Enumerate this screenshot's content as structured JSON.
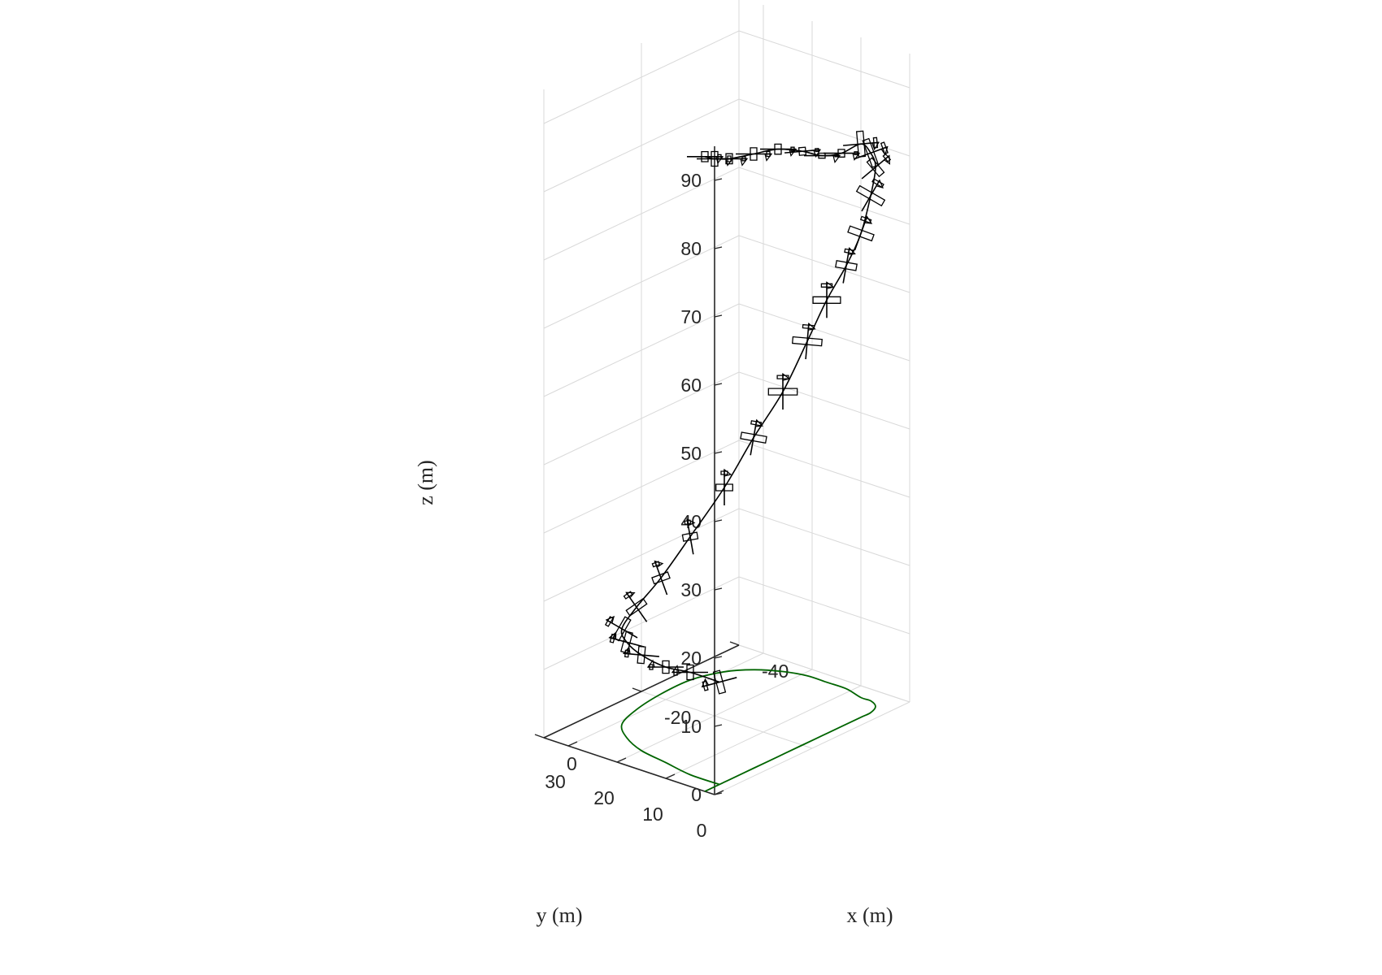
{
  "chart_data": {
    "type": "line",
    "projection": "3d",
    "title": "",
    "xlabel": "x (m)",
    "ylabel": "y (m)",
    "zlabel": "z (m)",
    "xlim": [
      -40,
      0
    ],
    "ylim": [
      0,
      35
    ],
    "zlim": [
      0,
      95
    ],
    "xticks": [
      "-40",
      "-20",
      "0"
    ],
    "yticks": [
      "0",
      "10",
      "20",
      "30"
    ],
    "zticks": [
      "0",
      "10",
      "20",
      "30",
      "40",
      "50",
      "60",
      "70",
      "80",
      "90"
    ],
    "grid": true,
    "colors": {
      "trajectory": "#000000",
      "ground_track": "#006400",
      "grid": "#d9d9d9",
      "axis": "#262626"
    },
    "series": [
      {
        "role": "trajectory",
        "x": [
          -3,
          -3,
          -4,
          -5,
          -7,
          -10,
          -15,
          -21,
          -27,
          -32,
          -35,
          -37,
          -38,
          -38,
          -38,
          -37,
          -37,
          -36,
          -34,
          -32,
          -28,
          -24,
          -20,
          -15,
          -10,
          -5,
          -2,
          0
        ],
        "y": [
          2,
          8,
          14,
          20,
          25,
          29,
          31,
          32,
          32,
          30,
          27,
          23,
          19,
          15,
          11,
          7,
          5,
          3,
          2,
          2,
          2,
          2,
          2,
          2,
          2,
          2,
          2,
          2
        ],
        "z": [
          15,
          15,
          14,
          14,
          14,
          14,
          15,
          17,
          21,
          27,
          34,
          41,
          49,
          56,
          62,
          68,
          74,
          79,
          82,
          84,
          84,
          85,
          87,
          89,
          90,
          91,
          92,
          93
        ]
      },
      {
        "role": "ground-track",
        "x": [
          -3,
          -3,
          -4,
          -5,
          -7,
          -10,
          -15,
          -21,
          -27,
          -32,
          -35,
          -37,
          -38,
          -38,
          -38,
          -37,
          -37,
          -36,
          -34,
          -32,
          -28,
          -24,
          -20,
          -15,
          -10,
          -5,
          -2,
          0
        ],
        "y": [
          2,
          8,
          14,
          20,
          25,
          29,
          31,
          32,
          32,
          30,
          27,
          23,
          19,
          15,
          11,
          7,
          5,
          3,
          2,
          2,
          2,
          2,
          2,
          2,
          2,
          2,
          2,
          2
        ],
        "z": [
          0,
          0,
          0,
          0,
          0,
          0,
          0,
          0,
          0,
          0,
          0,
          0,
          0,
          0,
          0,
          0,
          0,
          0,
          0,
          0,
          0,
          0,
          0,
          0,
          0,
          0,
          0,
          0
        ]
      }
    ],
    "aircraft_markers": [
      {
        "index": 0,
        "heading_deg": -15,
        "bank_deg": 40
      },
      {
        "index": 1,
        "heading_deg": 0,
        "bank_deg": 60
      },
      {
        "index": 2,
        "heading_deg": 0,
        "bank_deg": 65
      },
      {
        "index": 3,
        "heading_deg": 5,
        "bank_deg": 55
      },
      {
        "index": 4,
        "heading_deg": 15,
        "bank_deg": 45
      },
      {
        "index": 5,
        "heading_deg": 30,
        "bank_deg": 35
      },
      {
        "index": 6,
        "heading_deg": 55,
        "bank_deg": 45
      },
      {
        "index": 7,
        "heading_deg": 70,
        "bank_deg": 55
      },
      {
        "index": 8,
        "heading_deg": 80,
        "bank_deg": 60
      },
      {
        "index": 9,
        "heading_deg": 90,
        "bank_deg": 55
      },
      {
        "index": 10,
        "heading_deg": 100,
        "bank_deg": 30
      },
      {
        "index": 11,
        "heading_deg": 90,
        "bank_deg": 10
      },
      {
        "index": 12,
        "heading_deg": 95,
        "bank_deg": 0
      },
      {
        "index": 13,
        "heading_deg": 90,
        "bank_deg": 20
      },
      {
        "index": 14,
        "heading_deg": 100,
        "bank_deg": 45
      },
      {
        "index": 15,
        "heading_deg": 110,
        "bank_deg": 30
      },
      {
        "index": 16,
        "heading_deg": 120,
        "bank_deg": 10
      },
      {
        "index": 17,
        "heading_deg": 140,
        "bank_deg": 50
      },
      {
        "index": 18,
        "heading_deg": 160,
        "bank_deg": 15
      },
      {
        "index": 19,
        "heading_deg": 175,
        "bank_deg": 30
      },
      {
        "index": 20,
        "heading_deg": 180,
        "bank_deg": 75
      },
      {
        "index": 21,
        "heading_deg": 180,
        "bank_deg": 80
      },
      {
        "index": 22,
        "heading_deg": 175,
        "bank_deg": 75
      },
      {
        "index": 23,
        "heading_deg": 180,
        "bank_deg": 70
      },
      {
        "index": 24,
        "heading_deg": 180,
        "bank_deg": 65
      },
      {
        "index": 25,
        "heading_deg": 180,
        "bank_deg": 70
      },
      {
        "index": 26,
        "heading_deg": 180,
        "bank_deg": 60
      },
      {
        "index": 27,
        "heading_deg": 180,
        "bank_deg": 70
      }
    ]
  }
}
